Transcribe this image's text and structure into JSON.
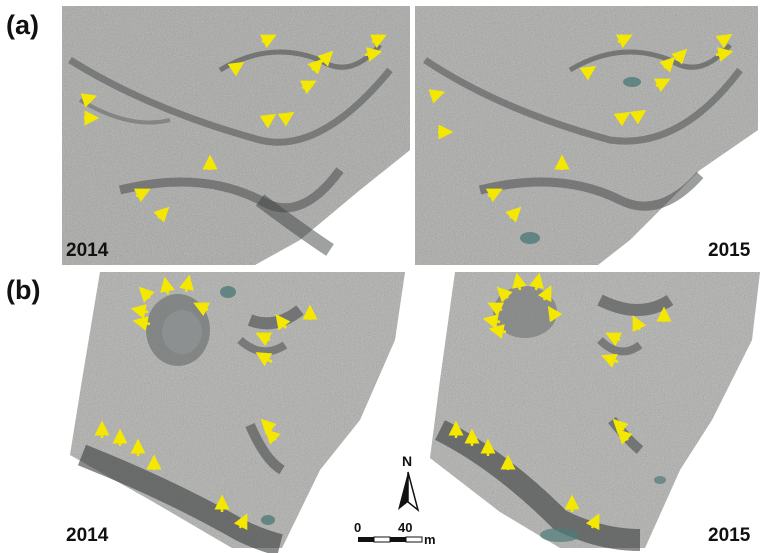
{
  "panels": {
    "a": {
      "letter": "(a)",
      "left_year": "2014",
      "right_year": "2015"
    },
    "b": {
      "letter": "(b)",
      "left_year": "2014",
      "right_year": "2015"
    }
  },
  "scale": {
    "north": "N",
    "zero": "0",
    "forty": "40",
    "unit": "m"
  },
  "colors": {
    "arrow": "#f5e800",
    "terrain": "#a9a9a9",
    "shadow": "#4a4d4d",
    "pond": "#4f7a78"
  }
}
